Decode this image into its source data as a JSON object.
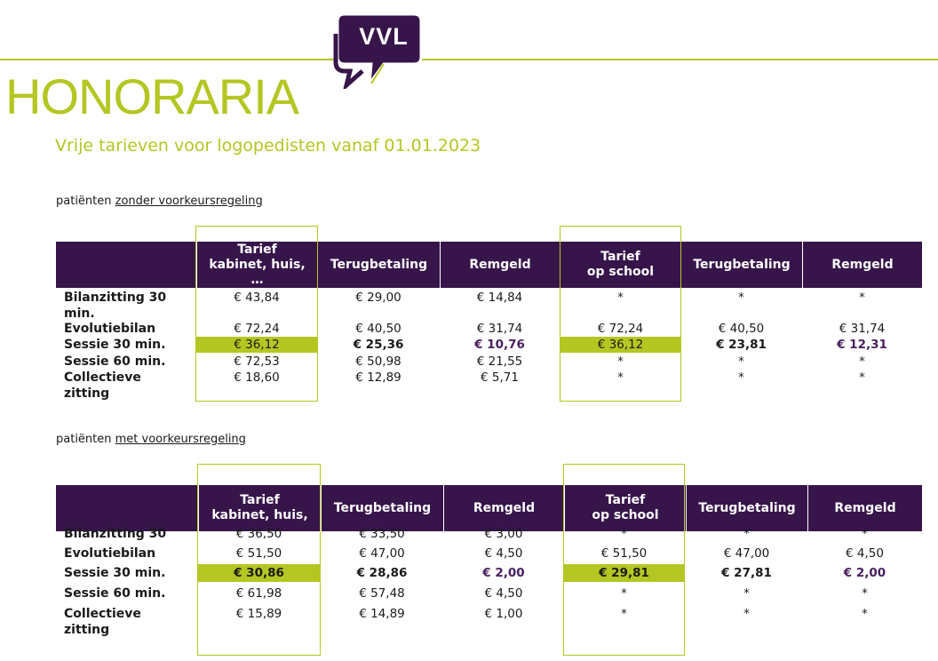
{
  "logo": {
    "text": "VVL",
    "colors": {
      "bubble": "#37154a",
      "accent": "#b4c622"
    }
  },
  "title": "HONORARIA",
  "subtitle": "Vrije tarieven voor logopedisten vanaf 01.01.2023",
  "colors": {
    "header_bg": "#37154a",
    "accent_green": "#b4c622",
    "remgeld_purple": "#4a2060"
  },
  "table1": {
    "label_prefix": "patiënten ",
    "label_link": "zonder voorkeursregeling",
    "headers": [
      "",
      "Tarief\nkabinet, huis,\n…",
      "Terugbetaling",
      "Remgeld",
      "Tarief\nop school",
      "Terugbetaling",
      "Remgeld"
    ],
    "rows": [
      {
        "label": "Bilanzitting 30\nmin.",
        "values": [
          "€ 43,84",
          "€ 29,00",
          "€ 14,84",
          "*",
          "*",
          "*"
        ]
      },
      {
        "label": "Evolutiebilan",
        "values": [
          "€ 72,24",
          "€ 40,50",
          "€ 31,74",
          "€ 72,24",
          "€ 40,50",
          "€ 31,74"
        ]
      },
      {
        "label": "Sessie 30 min.",
        "values": [
          "€ 36,12",
          "€ 25,36",
          "€ 10,76",
          "€ 36,12",
          "€ 23,81",
          "€ 12,31"
        ]
      },
      {
        "label": "Sessie 60 min.",
        "values": [
          "€ 72,53",
          "€ 50,98",
          "€ 21,55",
          "*",
          "*",
          "*"
        ]
      },
      {
        "label": "Collectieve\nzitting",
        "values": [
          "€ 18,60",
          "€ 12,89",
          "€ 5,71",
          "*",
          "*",
          "*"
        ]
      }
    ]
  },
  "table2": {
    "label_prefix": "patiënten ",
    "label_link": "met voorkeursregeling",
    "headers": [
      "",
      "Tarief\nkabinet, huis,",
      "Terugbetaling",
      "Remgeld",
      "Tarief\nop school",
      "Terugbetaling",
      "Remgeld"
    ],
    "rows": [
      {
        "label": "Bilanzitting 30",
        "values": [
          "€ 36,50",
          "€ 33,50",
          "€ 3,00",
          "*",
          "*",
          "*"
        ]
      },
      {
        "label": "Evolutiebilan",
        "values": [
          "€ 51,50",
          "€ 47,00",
          "€ 4,50",
          "€ 51,50",
          "€ 47,00",
          "€ 4,50"
        ]
      },
      {
        "label": "Sessie 30 min.",
        "values": [
          "€ 30,86",
          "€ 28,86",
          "€ 2,00",
          "€ 29,81",
          "€ 27,81",
          "€ 2,00"
        ]
      },
      {
        "label": "Sessie 60 min.",
        "values": [
          "€ 61,98",
          "€ 57,48",
          "€ 4,50",
          "*",
          "*",
          "*"
        ]
      },
      {
        "label": "Collectieve\nzitting",
        "values": [
          "€ 15,89",
          "€ 14,89",
          "€ 1,00",
          "*",
          "*",
          "*"
        ]
      }
    ]
  }
}
